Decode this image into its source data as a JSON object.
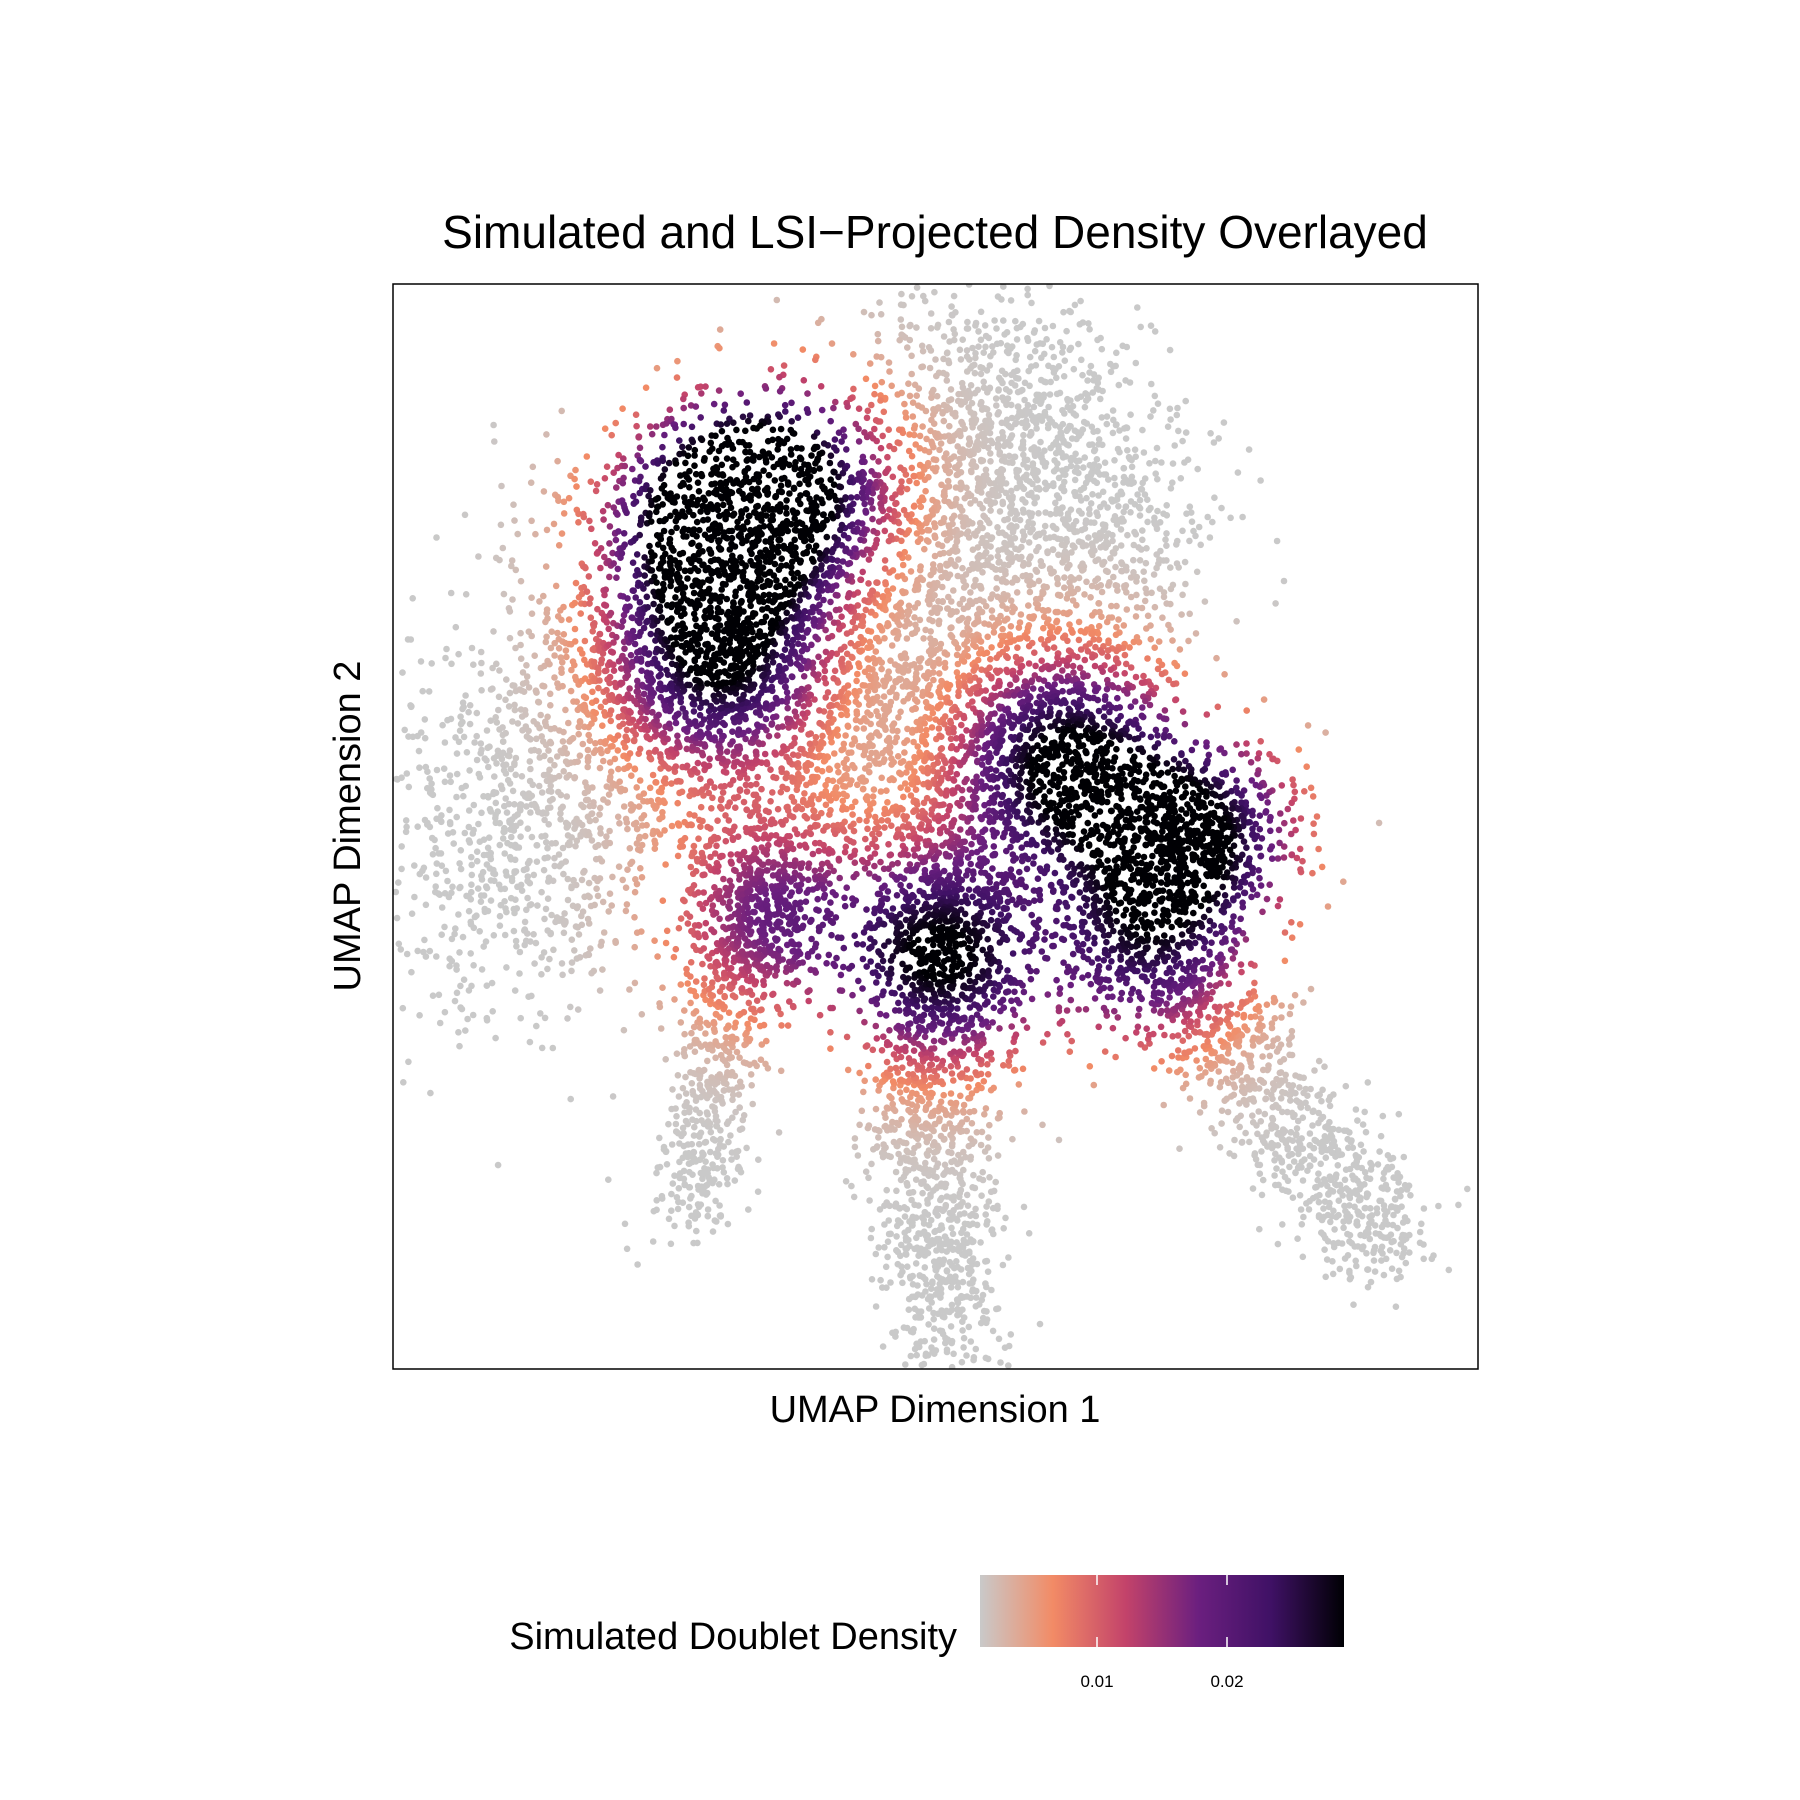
{
  "chart_data": {
    "type": "scatter",
    "title": "Simulated and LSI−Projected Density Overlayed",
    "xlabel": "UMAP Dimension 1",
    "ylabel": "UMAP Dimension 2",
    "axis_ticks": "none",
    "grid": false,
    "xlim": [
      -10,
      10
    ],
    "ylim": [
      -10,
      10
    ],
    "legend": {
      "position": "bottom",
      "title": "Simulated Doublet Density",
      "ticks": [
        {
          "label": "0.01",
          "value": 0.01
        },
        {
          "label": "0.02",
          "value": 0.02
        }
      ],
      "range": [
        0.001,
        0.029
      ],
      "colors": [
        "#c9c9c9",
        "#f28b66",
        "#c3436a",
        "#6b1f7f",
        "#3f1165",
        "#000004"
      ]
    },
    "density_hotspots": [
      {
        "x": -4.2,
        "y": 5.6,
        "density": 0.029
      },
      {
        "x": -2.8,
        "y": 6.3,
        "density": 0.029
      },
      {
        "x": -4.0,
        "y": 3.0,
        "density": 0.027
      },
      {
        "x": 2.3,
        "y": 1.2,
        "density": 0.029
      },
      {
        "x": 0.1,
        "y": -2.4,
        "density": 0.029
      },
      {
        "x": 4.8,
        "y": -0.1,
        "density": 0.028
      },
      {
        "x": -3.1,
        "y": -1.6,
        "density": 0.017
      },
      {
        "x": 3.8,
        "y": -2.3,
        "density": 0.02
      }
    ],
    "point_regions": [
      {
        "name": "upper-left cluster",
        "x_range": [
          -6.5,
          -0.5
        ],
        "y_range": [
          2.0,
          7.7
        ],
        "density_range": [
          0.004,
          0.029
        ]
      },
      {
        "name": "top lobe",
        "x_range": [
          -1.5,
          4.0
        ],
        "y_range": [
          2.5,
          9.2
        ],
        "density_range": [
          0.001,
          0.012
        ]
      },
      {
        "name": "left lobe",
        "x_range": [
          -9.8,
          -4.0
        ],
        "y_range": [
          -3.5,
          3.5
        ],
        "density_range": [
          0.001,
          0.009
        ]
      },
      {
        "name": "central cluster",
        "x_range": [
          0.5,
          5.5
        ],
        "y_range": [
          -2.0,
          4.0
        ],
        "density_range": [
          0.006,
          0.029
        ]
      },
      {
        "name": "lower-left branch",
        "x_range": [
          -5.0,
          -3.0
        ],
        "y_range": [
          -7.5,
          -1.0
        ],
        "density_range": [
          0.001,
          0.018
        ]
      },
      {
        "name": "lower-center branch",
        "x_range": [
          -1.5,
          1.5
        ],
        "y_range": [
          -10.0,
          -1.0
        ],
        "density_range": [
          0.001,
          0.029
        ]
      },
      {
        "name": "lower-right branch",
        "x_range": [
          4.0,
          9.6
        ],
        "y_range": [
          -9.0,
          -1.5
        ],
        "density_range": [
          0.001,
          0.02
        ]
      }
    ]
  }
}
